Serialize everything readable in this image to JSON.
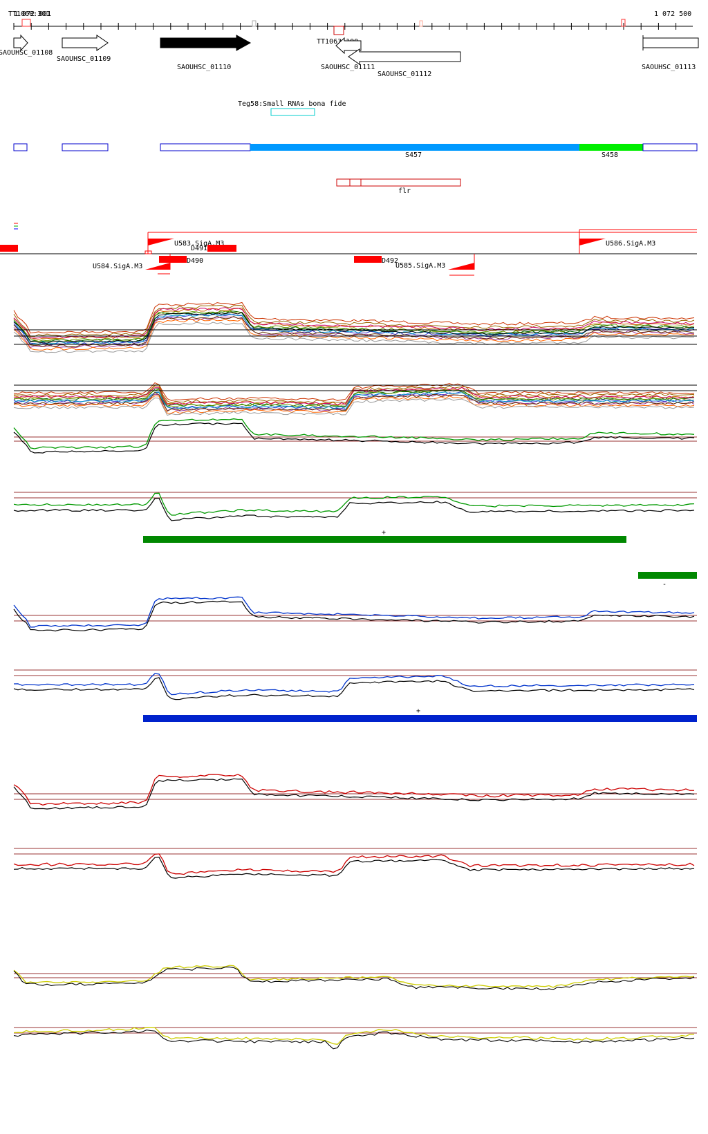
{
  "ruler": {
    "start_label": "TT1060:301",
    "start_label_overlap": "1 072 001",
    "end_label": "1 072 500",
    "start_position": 1072001,
    "end_position": 1072500
  },
  "tss_markers": [
    {
      "label": "TT1063:100"
    }
  ],
  "genes": [
    {
      "label": "SAOUHSC_01108",
      "strand": "+",
      "highlight": false
    },
    {
      "label": "SAOUHSC_01109",
      "strand": "+",
      "highlight": false
    },
    {
      "label": "SAOUHSC_01110",
      "strand": "+",
      "highlight": true
    },
    {
      "label": "SAOUHSC_01111",
      "strand": "-",
      "highlight": false
    },
    {
      "label": "SAOUHSC_01112",
      "strand": "-",
      "highlight": false
    },
    {
      "label": "SAOUHSC_01113",
      "strand": "+",
      "highlight": false
    }
  ],
  "srna": {
    "label": "Teg58:Small RNAs bona fide",
    "color": "#00cccc"
  },
  "segments": [
    {
      "label": "S457",
      "color": "#0099ff"
    },
    {
      "label": "S458",
      "color": "#00ee00"
    }
  ],
  "flr_label": "flr",
  "regulatory": [
    {
      "label": "U583.SigA.M3"
    },
    {
      "label": "U584.SigA.M3"
    },
    {
      "label": "U585.SigA.M3"
    },
    {
      "label": "U586.SigA.M3"
    },
    {
      "label": "D490"
    },
    {
      "label": "D491"
    },
    {
      "label": "D492"
    }
  ],
  "expression_panels": [
    {
      "name": "all-conditions-plus",
      "color": "multi"
    },
    {
      "name": "all-conditions-minus",
      "color": "multi"
    },
    {
      "name": "green-plus",
      "color": "#009900"
    },
    {
      "name": "green-minus",
      "color": "#009900",
      "bar_label": "+"
    },
    {
      "name": "green-extra",
      "color": "#009900",
      "bar_label": "-"
    },
    {
      "name": "blue-plus",
      "color": "#0033cc"
    },
    {
      "name": "blue-minus",
      "color": "#0033cc",
      "bar_label": "+"
    },
    {
      "name": "red-plus",
      "color": "#cc0000"
    },
    {
      "name": "red-minus",
      "color": "#cc0000"
    },
    {
      "name": "yellow-plus",
      "color": "#cccc00"
    },
    {
      "name": "yellow-minus",
      "color": "#cccc00"
    }
  ],
  "colors": {
    "gene_fill": "#000000",
    "tss": "#ff0000",
    "threshold": "#993333",
    "green_bar": "#008800",
    "blue_bar": "#0022cc"
  }
}
